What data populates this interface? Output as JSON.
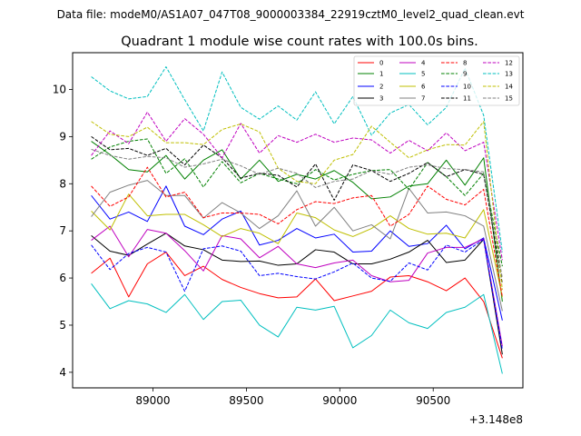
{
  "header_text": "Data file: modeM0/AS1A07_047T08_9000003384_22919cztM0_level2_quad_clean.evt",
  "chart_data": {
    "type": "line",
    "title": "Quadrant 1 module wise count rates with 100.0s bins.",
    "xlabel": "",
    "ylabel": "",
    "x_offset_text": "+3.148e8",
    "xlim": [
      88570,
      90980
    ],
    "ylim": [
      3.67,
      10.78
    ],
    "xticks": [
      89000,
      89500,
      90000,
      90500
    ],
    "xtick_labels": [
      "89000",
      "89500",
      "90000",
      "90500"
    ],
    "yticks": [
      4,
      5,
      6,
      7,
      8,
      9,
      10
    ],
    "ytick_labels": [
      "4",
      "5",
      "6",
      "7",
      "8",
      "9",
      "10"
    ],
    "legend_position": "top-right",
    "x": [
      88670,
      88770,
      88870,
      88970,
      89070,
      89170,
      89270,
      89370,
      89470,
      89570,
      89670,
      89770,
      89870,
      89970,
      90070,
      90170,
      90270,
      90370,
      90470,
      90570,
      90670,
      90770,
      90870
    ],
    "series": [
      {
        "name": "0",
        "color": "#ff0000",
        "style": "solid",
        "values": [
          6.1,
          6.42,
          5.6,
          6.3,
          6.55,
          6.05,
          6.25,
          5.97,
          5.8,
          5.67,
          5.58,
          5.6,
          5.98,
          5.52,
          5.62,
          5.72,
          6.02,
          6.05,
          5.92,
          5.73,
          6.0,
          5.5,
          4.3
        ]
      },
      {
        "name": "1",
        "color": "#008000",
        "style": "solid",
        "values": [
          8.9,
          8.62,
          8.3,
          8.25,
          8.6,
          8.1,
          8.5,
          8.72,
          8.1,
          8.5,
          8.05,
          8.2,
          8.1,
          8.28,
          8.03,
          7.68,
          7.72,
          7.95,
          8.0,
          8.5,
          7.97,
          8.55,
          5.5
        ]
      },
      {
        "name": "2",
        "color": "#0000ff",
        "style": "solid",
        "values": [
          7.75,
          7.25,
          7.4,
          7.2,
          7.95,
          7.1,
          6.92,
          7.25,
          7.42,
          6.7,
          6.8,
          7.05,
          6.85,
          6.93,
          6.55,
          6.57,
          7.0,
          6.67,
          6.73,
          7.12,
          6.62,
          6.85,
          5.1
        ]
      },
      {
        "name": "3",
        "color": "#000000",
        "style": "solid",
        "values": [
          6.9,
          6.57,
          6.48,
          6.72,
          6.95,
          6.68,
          6.6,
          6.38,
          6.35,
          6.36,
          6.27,
          6.3,
          6.6,
          6.55,
          6.3,
          6.3,
          6.4,
          6.55,
          6.8,
          6.33,
          6.38,
          6.82,
          4.38
        ]
      },
      {
        "name": "4",
        "color": "#bf00bf",
        "style": "solid",
        "values": [
          6.8,
          7.1,
          6.45,
          7.03,
          6.95,
          6.58,
          6.15,
          6.9,
          6.83,
          6.43,
          6.67,
          6.3,
          6.22,
          6.32,
          6.38,
          6.05,
          5.92,
          5.95,
          6.53,
          6.65,
          6.65,
          6.83,
          4.55
        ]
      },
      {
        "name": "5",
        "color": "#00bfbf",
        "style": "solid",
        "values": [
          5.88,
          5.35,
          5.52,
          5.45,
          5.27,
          5.65,
          5.12,
          5.5,
          5.53,
          5.0,
          4.75,
          5.38,
          5.32,
          5.4,
          4.52,
          4.78,
          5.32,
          5.05,
          4.93,
          5.27,
          5.38,
          5.65,
          3.97
        ]
      },
      {
        "name": "6",
        "color": "#bfbf00",
        "style": "solid",
        "values": [
          7.42,
          7.02,
          7.78,
          7.32,
          7.35,
          7.35,
          7.13,
          6.88,
          7.05,
          6.95,
          6.73,
          7.38,
          7.28,
          7.02,
          6.88,
          7.05,
          7.32,
          7.05,
          6.93,
          6.95,
          6.85,
          7.45,
          5.6
        ]
      },
      {
        "name": "7",
        "color": "#808080",
        "style": "solid",
        "values": [
          7.3,
          7.82,
          7.97,
          8.07,
          7.75,
          7.75,
          7.27,
          7.6,
          7.38,
          7.05,
          7.32,
          7.85,
          7.1,
          7.5,
          7.0,
          7.13,
          6.83,
          7.9,
          7.38,
          7.4,
          7.32,
          7.1,
          5.3
        ]
      },
      {
        "name": "8",
        "color": "#ff0000",
        "style": "dashed",
        "values": [
          7.95,
          7.52,
          7.72,
          8.35,
          7.72,
          7.82,
          7.28,
          7.38,
          7.38,
          7.35,
          7.15,
          7.45,
          7.62,
          7.58,
          7.7,
          7.75,
          7.1,
          7.35,
          7.95,
          7.67,
          7.55,
          7.88,
          5.6
        ]
      },
      {
        "name": "9",
        "color": "#008000",
        "style": "dashed",
        "values": [
          8.52,
          8.78,
          8.9,
          8.95,
          8.22,
          8.53,
          7.93,
          8.47,
          8.02,
          8.22,
          8.1,
          8.0,
          8.3,
          8.08,
          8.2,
          8.28,
          8.3,
          7.88,
          8.45,
          8.15,
          7.75,
          8.22,
          6.25
        ]
      },
      {
        "name": "10",
        "color": "#0000ff",
        "style": "dashed",
        "values": [
          6.7,
          6.18,
          6.52,
          6.65,
          6.55,
          5.72,
          6.62,
          6.68,
          6.57,
          6.05,
          6.1,
          6.03,
          5.98,
          6.13,
          6.32,
          6.0,
          5.93,
          6.32,
          6.17,
          6.7,
          6.55,
          6.82,
          4.48
        ]
      },
      {
        "name": "11",
        "color": "#000000",
        "style": "dashed",
        "values": [
          9.0,
          8.72,
          8.75,
          8.6,
          8.75,
          8.4,
          8.82,
          8.55,
          8.12,
          8.22,
          8.18,
          7.93,
          8.42,
          7.65,
          8.4,
          8.28,
          8.05,
          8.22,
          8.45,
          8.15,
          8.3,
          8.2,
          5.88
        ]
      },
      {
        "name": "12",
        "color": "#bf00bf",
        "style": "dashed",
        "values": [
          8.6,
          9.12,
          8.85,
          9.52,
          8.9,
          9.38,
          9.05,
          8.55,
          9.28,
          8.65,
          9.02,
          8.88,
          9.05,
          8.88,
          8.97,
          8.93,
          8.65,
          8.92,
          8.7,
          9.08,
          8.7,
          8.88,
          6.38
        ]
      },
      {
        "name": "13",
        "color": "#00bfbf",
        "style": "dashed",
        "values": [
          10.27,
          9.97,
          9.8,
          9.85,
          10.48,
          9.78,
          9.12,
          10.37,
          9.62,
          9.37,
          9.65,
          9.35,
          9.95,
          9.27,
          9.85,
          9.03,
          9.5,
          9.68,
          9.25,
          9.62,
          10.45,
          9.45,
          6.55
        ]
      },
      {
        "name": "14",
        "color": "#bfbf00",
        "style": "dashed",
        "values": [
          9.32,
          9.05,
          9.0,
          9.2,
          8.87,
          8.87,
          8.83,
          9.15,
          9.27,
          9.1,
          8.33,
          8.05,
          8.0,
          8.5,
          8.62,
          9.22,
          8.88,
          8.55,
          8.72,
          8.83,
          8.82,
          9.32,
          5.75
        ]
      },
      {
        "name": "15",
        "color": "#808080",
        "style": "dashed",
        "values": [
          8.73,
          8.6,
          8.52,
          8.58,
          8.55,
          8.35,
          8.42,
          8.52,
          8.38,
          8.2,
          8.33,
          8.22,
          7.92,
          8.05,
          8.1,
          8.28,
          8.2,
          8.35,
          8.4,
          8.32,
          8.3,
          8.25,
          6.0
        ]
      }
    ]
  }
}
